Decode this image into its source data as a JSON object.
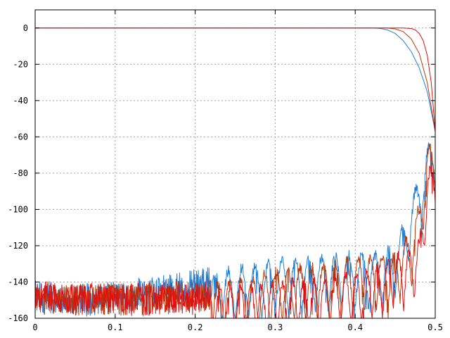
{
  "chart_data": {
    "type": "line",
    "title": "",
    "xlabel": "",
    "ylabel": "",
    "xlim": [
      0,
      0.5
    ],
    "ylim": [
      -160,
      10
    ],
    "grid": true,
    "x_ticks": [
      0,
      0.1,
      0.2,
      0.3,
      0.4,
      0.5
    ],
    "x_tick_labels": [
      "0",
      "0.1",
      "0.2",
      "0.3",
      "0.4",
      "0.5"
    ],
    "y_ticks": [
      0,
      -20,
      -40,
      -60,
      -80,
      -100,
      -120,
      -140,
      -160
    ],
    "y_tick_labels": [
      "0",
      "-20",
      "-40",
      "-60",
      "-80",
      "-100",
      "-120",
      "-140",
      "-160"
    ],
    "colors": {
      "blue": "#1f7fd6",
      "dark_red": "#b83a0a",
      "red": "#e01010"
    },
    "series": [
      {
        "color": "#1f7fd6",
        "passband": {
          "x": [
            0,
            0.42,
            0.43,
            0.44,
            0.45,
            0.46,
            0.47,
            0.48,
            0.49,
            0.5
          ],
          "y": [
            0,
            0,
            -0.2,
            -1,
            -3,
            -7,
            -13,
            -22,
            -35,
            -57
          ]
        },
        "stopband_envelope": {
          "x": [
            0,
            0.05,
            0.1,
            0.15,
            0.2,
            0.25,
            0.3,
            0.35,
            0.4,
            0.43,
            0.45,
            0.47,
            0.48,
            0.49,
            0.5
          ],
          "y": [
            -139,
            -141,
            -140,
            -136,
            -133,
            -130,
            -126,
            -124,
            -122,
            -122,
            -117,
            -93,
            -80,
            -64,
            -57
          ]
        }
      },
      {
        "color": "#b83a0a",
        "passband": {
          "x": [
            0,
            0.44,
            0.45,
            0.46,
            0.47,
            0.48,
            0.49,
            0.5
          ],
          "y": [
            0,
            0,
            -0.5,
            -2,
            -6,
            -14,
            -30,
            -57
          ]
        },
        "stopband_envelope": {
          "x": [
            0,
            0.1,
            0.2,
            0.25,
            0.3,
            0.35,
            0.4,
            0.43,
            0.45,
            0.47,
            0.48,
            0.49,
            0.5
          ],
          "y": [
            -140,
            -141,
            -139,
            -137,
            -131,
            -128,
            -124,
            -123,
            -121,
            -110,
            -95,
            -64,
            -57
          ]
        }
      },
      {
        "color": "#e01010",
        "passband": {
          "x": [
            0,
            0.46,
            0.47,
            0.475,
            0.48,
            0.485,
            0.49,
            0.495,
            0.5
          ],
          "y": [
            0,
            0,
            -0.3,
            -1,
            -3,
            -7,
            -15,
            -30,
            -57
          ]
        },
        "stopband_envelope": {
          "x": [
            0,
            0.1,
            0.2,
            0.3,
            0.35,
            0.4,
            0.43,
            0.45,
            0.47,
            0.48,
            0.49,
            0.5
          ],
          "y": [
            -139,
            -141,
            -140,
            -138,
            -136,
            -133,
            -128,
            -123,
            -120,
            -113,
            -80,
            -63
          ]
        }
      }
    ]
  }
}
